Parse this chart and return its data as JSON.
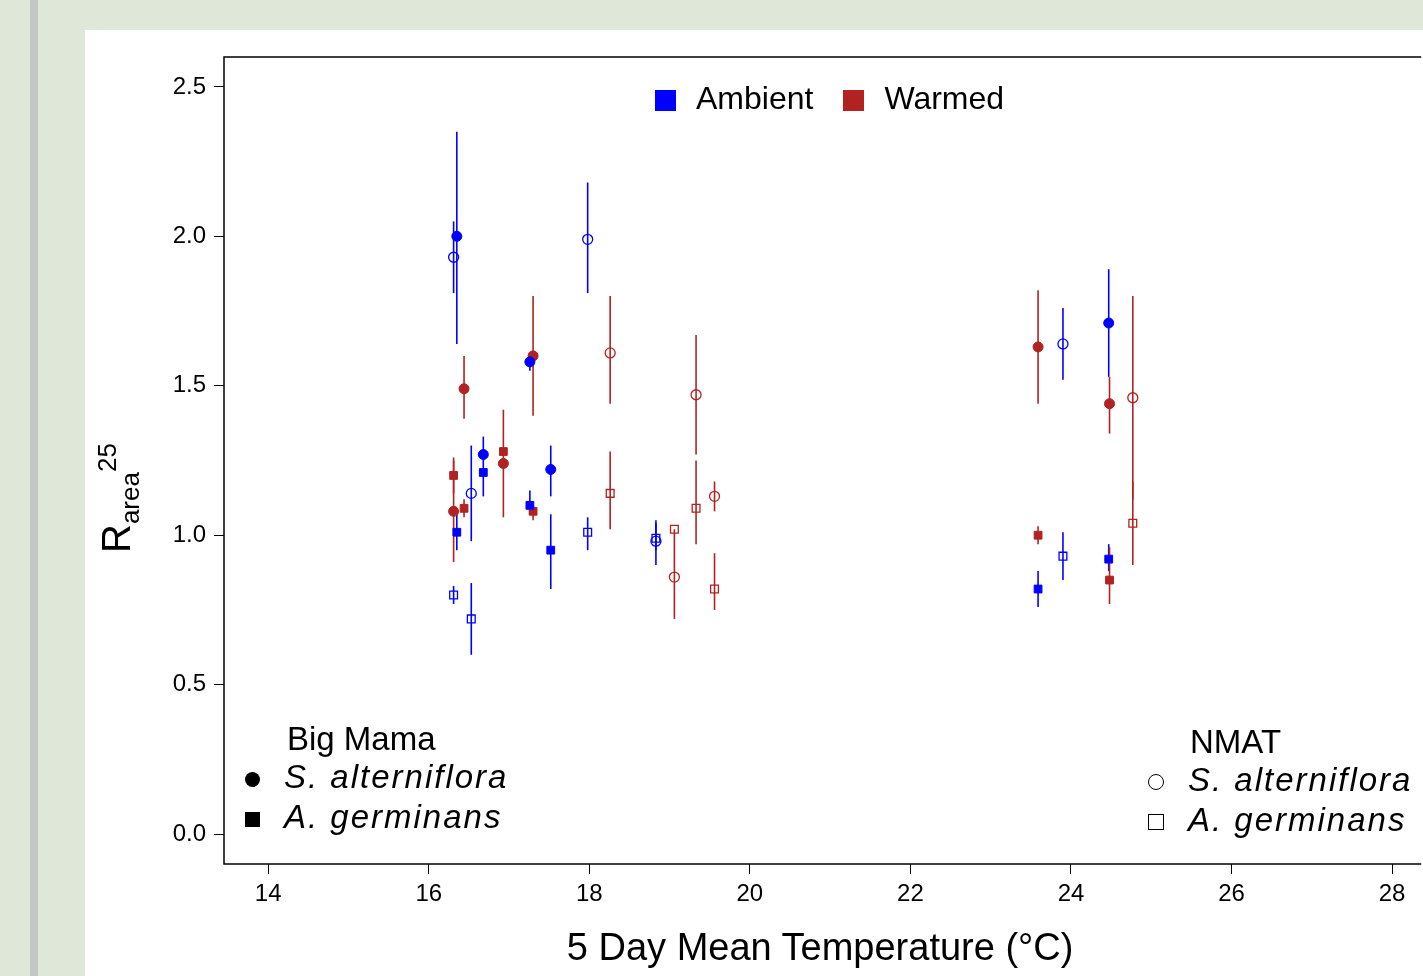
{
  "chart_data": {
    "type": "scatter",
    "xlabel": "5 Day Mean Temperature (°C)",
    "ylabel": "R$_{area}$$^{25}$",
    "xlim": [
      13.45,
      28.3
    ],
    "xticks": [
      14,
      16,
      18,
      20,
      22,
      24,
      26,
      28
    ],
    "ylim": [
      -0.1,
      2.6
    ],
    "yticks": [
      {
        "value": 0,
        "label": "0.0"
      },
      0.5,
      {
        "value": 1,
        "label": "1.0"
      },
      1.5,
      {
        "value": 2,
        "label": "2.0"
      },
      2.5
    ],
    "grid": false,
    "annotations": [
      "Ambient",
      "Warmed",
      "Big Mama",
      "S. alterniflora",
      "A. germinans",
      "NMAT",
      "S. alterniflora",
      "A. germinans"
    ],
    "series": [
      {
        "color": "#0000ff",
        "marker": "circle",
        "x": [
          16.35,
          17.26,
          16.68,
          17.52,
          24.47
        ],
        "values": [
          2.0,
          1.58,
          1.27,
          1.22,
          1.71
        ],
        "errors": [
          [
            1.64,
            2.35
          ],
          [
            1.55,
            1.6
          ],
          [
            1.2,
            1.33
          ],
          [
            1.13,
            1.3
          ],
          [
            1.53,
            1.89
          ]
        ]
      },
      {
        "color": "#0000ff",
        "marker": "square",
        "x": [
          16.35,
          16.68,
          17.26,
          17.52,
          23.59,
          24.47
        ],
        "values": [
          1.01,
          1.21,
          1.1,
          0.95,
          0.82,
          0.92
        ],
        "errors": [
          [
            0.95,
            1.07
          ],
          [
            1.13,
            1.21
          ],
          [
            1.07,
            1.15
          ],
          [
            0.82,
            1.07
          ],
          [
            0.76,
            0.88
          ],
          [
            0.88,
            0.97
          ]
        ]
      },
      {
        "color": "#b22222",
        "marker": "circle",
        "x": [
          16.31,
          16.44,
          16.93,
          17.3,
          23.59,
          24.48
        ],
        "values": [
          1.08,
          1.49,
          1.24,
          1.6,
          1.63,
          1.44
        ],
        "errors": [
          [
            0.91,
            1.25
          ],
          [
            1.39,
            1.6
          ],
          [
            1.06,
            1.42
          ],
          [
            1.4,
            1.8
          ],
          [
            1.44,
            1.82
          ],
          [
            1.34,
            1.53
          ]
        ]
      },
      {
        "color": "#b22222",
        "marker": "square",
        "x": [
          16.31,
          16.44,
          16.93,
          17.3,
          23.59,
          24.48
        ],
        "values": [
          1.2,
          1.09,
          1.28,
          1.08,
          1.0,
          0.85
        ],
        "errors": [
          [
            1.14,
            1.26
          ],
          [
            1.06,
            1.12
          ],
          null,
          [
            1.05,
            1.1
          ],
          [
            0.97,
            1.03
          ],
          [
            0.77,
            0.96
          ]
        ]
      },
      {
        "color": "#0000ff",
        "marker": "circle",
        "x": [
          16.31,
          16.53,
          17.98,
          18.83,
          23.9
        ],
        "values": [
          1.93,
          1.14,
          1.99,
          0.98,
          1.64
        ],
        "errors": [
          [
            1.81,
            2.05
          ],
          [
            0.98,
            1.3
          ],
          [
            1.81,
            2.18
          ],
          [
            0.9,
            1.05
          ],
          [
            1.52,
            1.76
          ]
        ]
      },
      {
        "color": "#0000ff",
        "marker": "square",
        "x": [
          16.31,
          16.53,
          17.98,
          18.83,
          23.9
        ],
        "values": [
          0.8,
          0.72,
          1.01,
          0.99,
          0.93
        ],
        "errors": [
          [
            0.77,
            0.83
          ],
          [
            0.6,
            0.84
          ],
          [
            0.95,
            1.06
          ],
          [
            0.95,
            1.04
          ],
          [
            0.85,
            1.01
          ]
        ]
      },
      {
        "color": "#b22222",
        "marker": "circle",
        "x": [
          18.26,
          19.06,
          19.33,
          19.56,
          24.77
        ],
        "values": [
          1.61,
          0.86,
          1.47,
          1.13,
          1.46
        ],
        "errors": [
          [
            1.44,
            1.8
          ],
          [
            0.72,
            1.02
          ],
          [
            1.27,
            1.67
          ],
          [
            1.08,
            1.18
          ],
          [
            1.12,
            1.8
          ]
        ]
      },
      {
        "color": "#b22222",
        "marker": "square",
        "x": [
          18.26,
          19.06,
          19.33,
          19.56,
          24.77
        ],
        "values": [
          1.14,
          1.02,
          1.09,
          0.82,
          1.04
        ],
        "errors": [
          [
            1.02,
            1.28
          ],
          null,
          [
            0.97,
            1.25
          ],
          [
            0.75,
            0.94
          ],
          [
            0.9,
            1.18
          ]
        ]
      }
    ]
  }
}
